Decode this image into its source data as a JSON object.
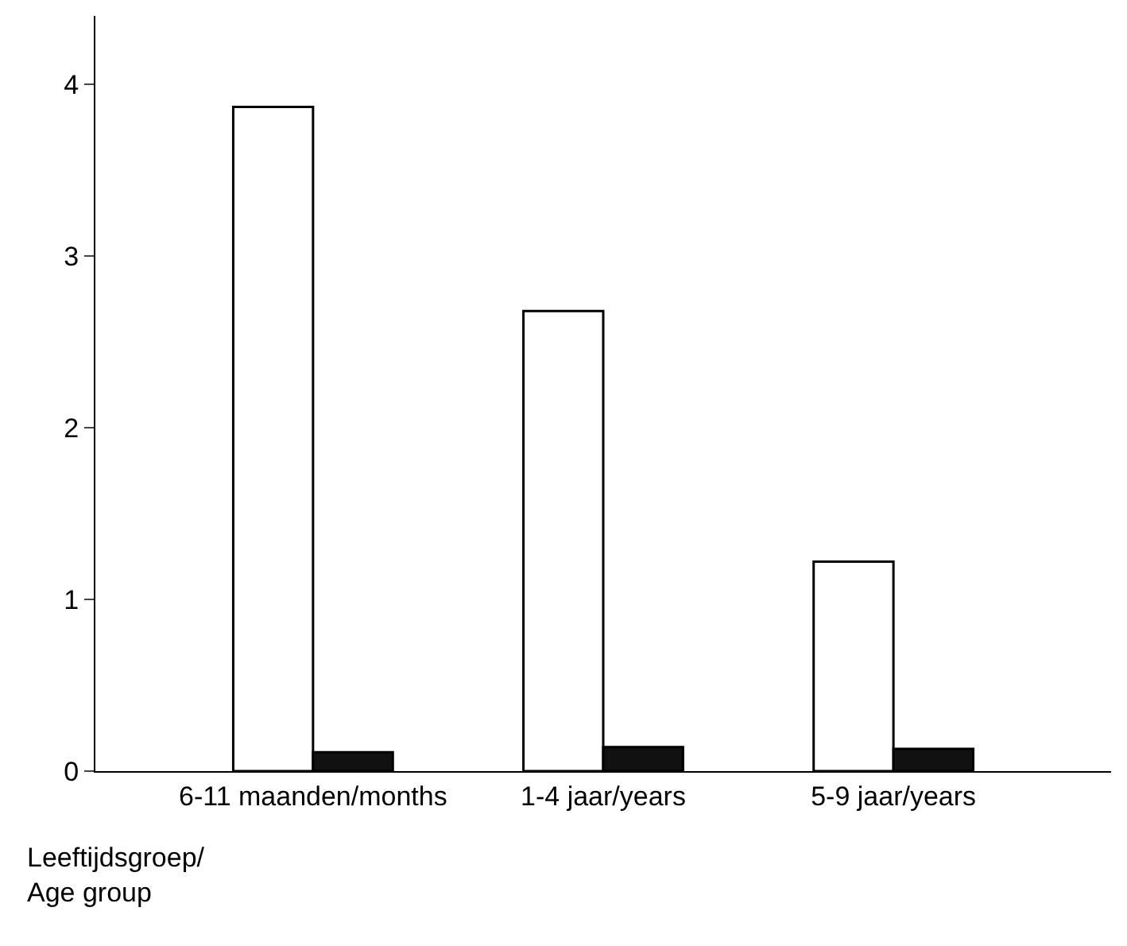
{
  "chart_data": {
    "type": "bar",
    "categories": [
      "6-11 maanden/months",
      "1-4 jaar/years",
      "5-9 jaar/years"
    ],
    "xlabel": "Leeftijdsgroep/\nAge group",
    "series": [
      {
        "color": "#ffffff",
        "values": [
          3.87,
          2.68,
          1.22
        ]
      },
      {
        "color": "#111111",
        "values": [
          0.11,
          0.14,
          0.13
        ]
      }
    ],
    "ylim": [
      0,
      4.4
    ],
    "yticks": [
      0,
      1,
      2,
      3,
      4
    ]
  }
}
